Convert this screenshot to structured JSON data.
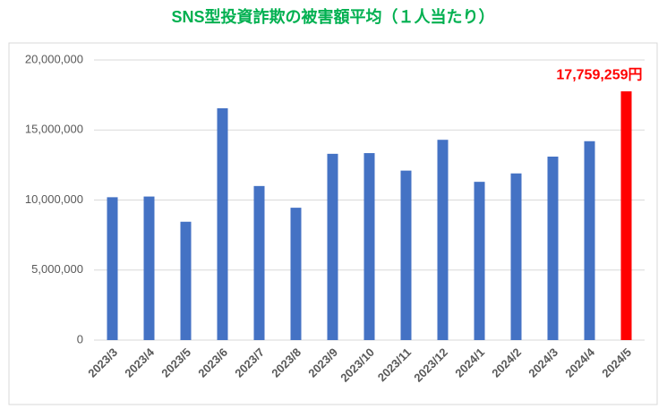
{
  "chart_data": {
    "type": "bar",
    "title": "SNS型投資詐欺の被害額平均（１人当たり）",
    "categories": [
      "2023/3",
      "2023/4",
      "2023/5",
      "2023/6",
      "2023/7",
      "2023/8",
      "2023/9",
      "2023/10",
      "2023/11",
      "2023/12",
      "2024/1",
      "2024/2",
      "2024/3",
      "2024/4",
      "2024/5"
    ],
    "values": [
      10200000,
      10250000,
      8450000,
      16550000,
      11000000,
      9450000,
      13300000,
      13350000,
      12100000,
      14300000,
      11300000,
      11900000,
      13100000,
      14200000,
      17759259
    ],
    "value_labels": [
      null,
      null,
      null,
      null,
      null,
      null,
      null,
      null,
      null,
      null,
      null,
      null,
      null,
      null,
      "17,759,259円"
    ],
    "colors": [
      "#4472c4",
      "#4472c4",
      "#4472c4",
      "#4472c4",
      "#4472c4",
      "#4472c4",
      "#4472c4",
      "#4472c4",
      "#4472c4",
      "#4472c4",
      "#4472c4",
      "#4472c4",
      "#4472c4",
      "#4472c4",
      "#ff0000"
    ],
    "ylim": [
      0,
      20000000
    ],
    "yticks": [
      0,
      {
        "value": 5000000,
        "label": "5,000,000"
      },
      {
        "value": 10000000,
        "label": "10,000,000"
      },
      {
        "value": 15000000,
        "label": "15,000,000"
      },
      {
        "value": 20000000,
        "label": "20,000,000"
      }
    ],
    "grid": true
  }
}
